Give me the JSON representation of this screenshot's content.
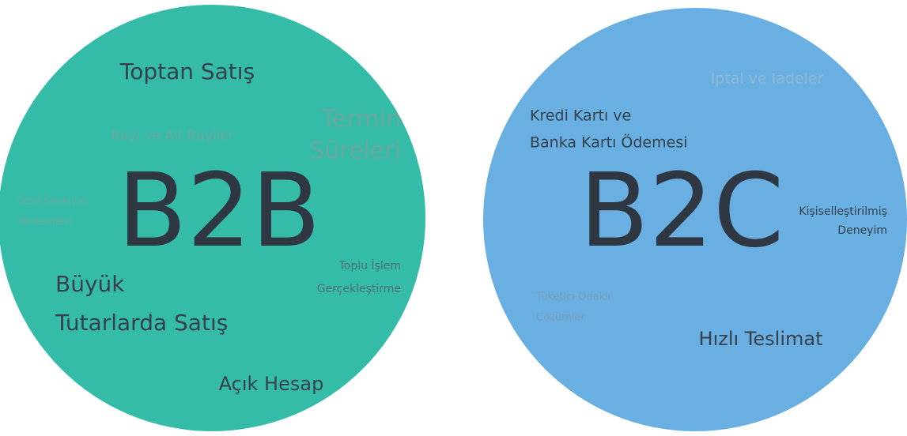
{
  "left": {
    "title": "B2B",
    "terms": [
      {
        "lines": [
          "Toptan Satış"
        ]
      },
      {
        "lines": [
          "Bayi ve Alt Bayiler"
        ]
      },
      {
        "lines": [
          "Termin",
          "Süreleri"
        ]
      },
      {
        "lines": [
          "Özel Sevkiyat",
          "Yöntemleri"
        ]
      },
      {
        "lines": [
          "Toplu İşlem",
          "Gerçekleştirme"
        ]
      },
      {
        "lines": [
          "Büyük",
          "Tutarlarda Satış"
        ]
      },
      {
        "lines": [
          "Açık Hesap"
        ]
      }
    ]
  },
  "right": {
    "title": "B2C",
    "terms": [
      {
        "lines": [
          "İptal ve İadeler"
        ]
      },
      {
        "lines": [
          "Kredi Kartı ve",
          "Banka Kartı Ödemesi"
        ]
      },
      {
        "lines": [
          "Kişiselleştirilmiş",
          "Deneyim"
        ]
      },
      {
        "lines": [
          "Tüketici Odaklı",
          "Çözümler"
        ]
      },
      {
        "lines": [
          "Hızlı Teslimat"
        ]
      }
    ]
  }
}
